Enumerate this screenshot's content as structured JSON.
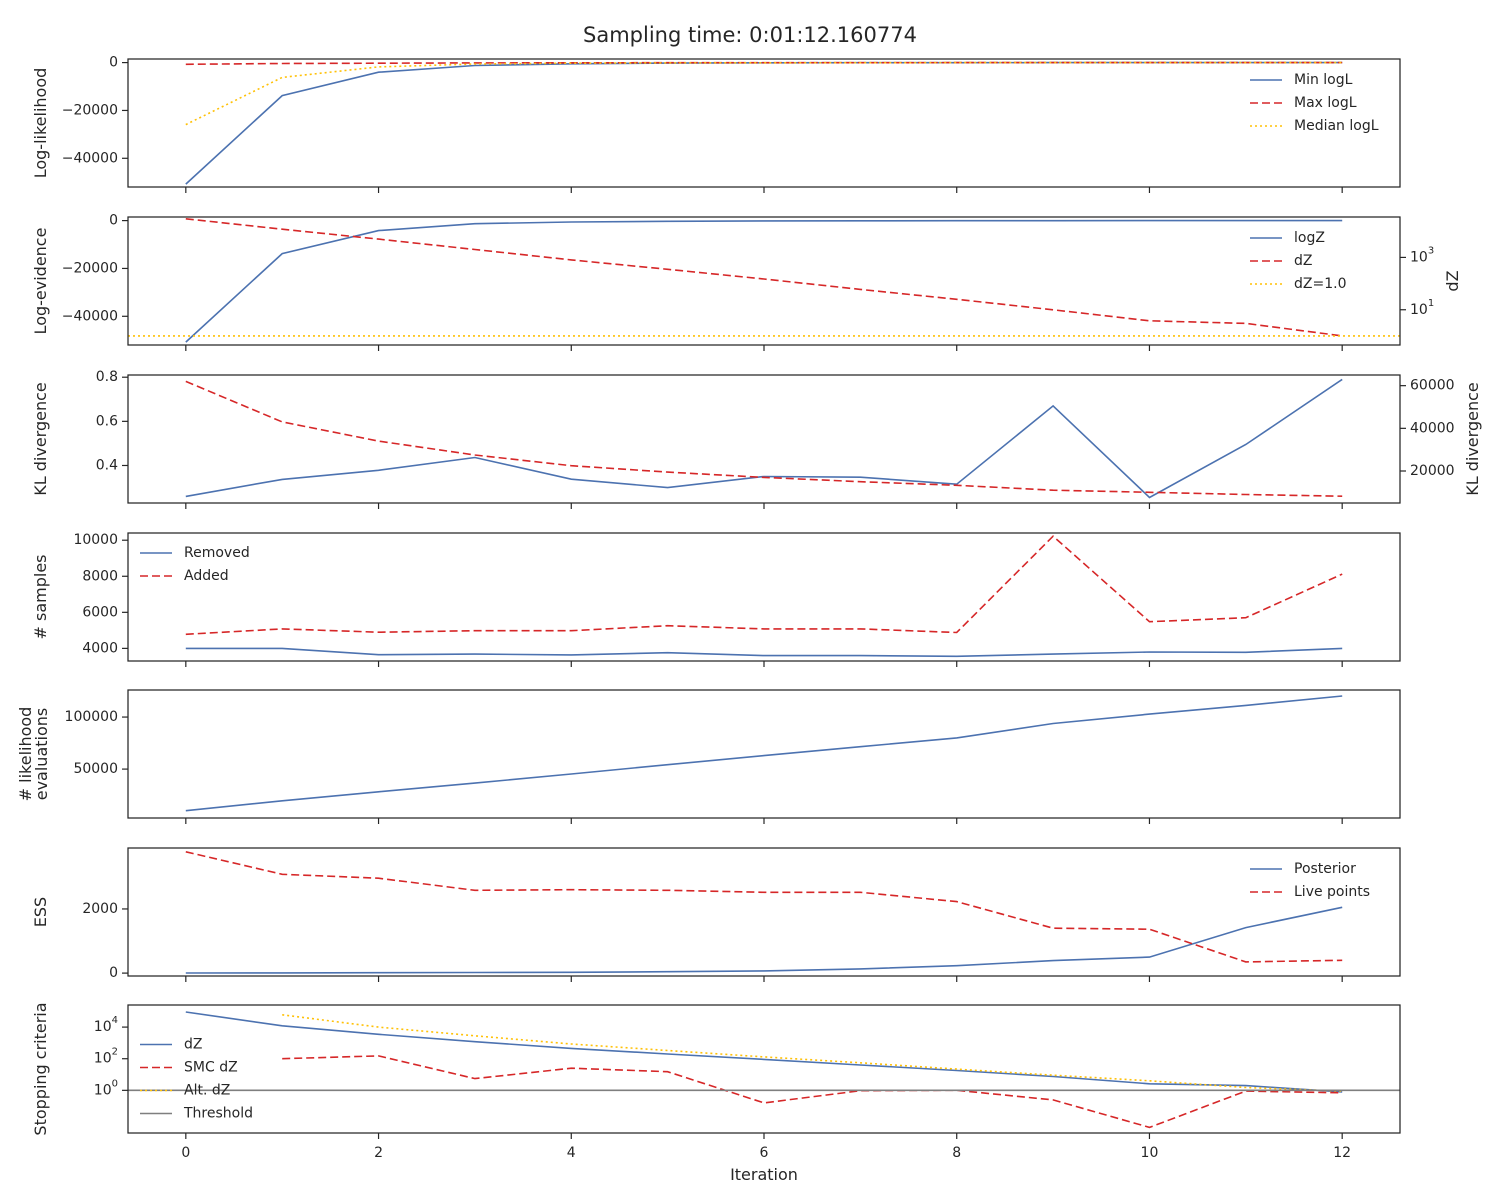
{
  "title": "Sampling time: 0:01:12.160774",
  "xlabel": "Iteration",
  "x_ticks": [
    0,
    2,
    4,
    6,
    8,
    10,
    12
  ],
  "colors": {
    "blue": "#4c72b0",
    "red": "#d62728",
    "gold": "#ffc107",
    "gray": "#7f7f7f",
    "axis": "#262626"
  },
  "chart_data": [
    {
      "type": "line",
      "panel": "log-likelihood",
      "ylabel": "Log-likelihood",
      "ylim": [
        -52000,
        1500
      ],
      "yticks": [
        {
          "v": 0,
          "label": "0"
        },
        {
          "v": -20000,
          "label": "−20000"
        },
        {
          "v": -40000,
          "label": "−40000"
        }
      ],
      "legend_position": "upper right",
      "x": [
        0,
        1,
        2,
        3,
        4,
        5,
        6,
        7,
        8,
        9,
        10,
        11,
        12
      ],
      "series": [
        {
          "name": "Min logL",
          "color": "#4c72b0",
          "style": "solid",
          "values": [
            -50800,
            -13800,
            -4000,
            -1200,
            -500,
            -200,
            -100,
            -50,
            -30,
            -20,
            -10,
            -8,
            -5
          ]
        },
        {
          "name": "Max logL",
          "color": "#d62728",
          "style": "dashed",
          "values": [
            -700,
            -400,
            -250,
            -150,
            -100,
            -60,
            -40,
            -30,
            -20,
            -15,
            -10,
            -8,
            -5
          ]
        },
        {
          "name": "Median logL",
          "color": "#ffc107",
          "style": "dotted",
          "values": [
            -25900,
            -6200,
            -1800,
            -600,
            -250,
            -120,
            -70,
            -40,
            -25,
            -18,
            -12,
            -9,
            -6
          ]
        }
      ]
    },
    {
      "type": "line",
      "panel": "log-evidence",
      "ylabel": "Log-evidence",
      "ylim": [
        -52000,
        1500
      ],
      "yticks": [
        {
          "v": 0,
          "label": "0"
        },
        {
          "v": -20000,
          "label": "−20000"
        },
        {
          "v": -40000,
          "label": "−40000"
        }
      ],
      "y2label": "dZ",
      "y2scale": "log",
      "y2lim": [
        0.45,
        35000
      ],
      "y2ticks": [
        {
          "v": 1000,
          "label": "10",
          "exp": "3"
        },
        {
          "v": 10,
          "label": "10",
          "exp": "1"
        }
      ],
      "legend_position": "upper right",
      "x": [
        0,
        1,
        2,
        3,
        4,
        5,
        6,
        7,
        8,
        9,
        10,
        11,
        12
      ],
      "series": [
        {
          "name": "logZ",
          "color": "#4c72b0",
          "style": "solid",
          "axis": "left",
          "values": [
            -50800,
            -13800,
            -4200,
            -1300,
            -600,
            -300,
            -150,
            -80,
            -50,
            -30,
            -20,
            -10,
            -5
          ]
        },
        {
          "name": "dZ",
          "color": "#d62728",
          "style": "dashed",
          "axis": "right",
          "values": [
            30000,
            12000,
            5000,
            2000,
            800,
            350,
            150,
            60,
            25,
            10,
            3.8,
            3,
            1.0
          ]
        },
        {
          "name": "dZ=1.0",
          "color": "#ffc107",
          "style": "dotted",
          "axis": "right",
          "hline": 1.0
        }
      ]
    },
    {
      "type": "line",
      "panel": "kl-divergence",
      "ylabel": "KL divergence",
      "ylim": [
        0.23,
        0.81
      ],
      "yticks": [
        {
          "v": 0.4,
          "label": "0.4"
        },
        {
          "v": 0.6,
          "label": "0.6"
        },
        {
          "v": 0.8,
          "label": "0.8"
        }
      ],
      "y2label": "KL divergence",
      "y2lim": [
        5000,
        65000
      ],
      "y2ticks": [
        {
          "v": 20000,
          "label": "20000"
        },
        {
          "v": 40000,
          "label": "40000"
        },
        {
          "v": 60000,
          "label": "60000"
        }
      ],
      "x": [
        0,
        1,
        2,
        3,
        4,
        5,
        6,
        7,
        8,
        9,
        10,
        11,
        12
      ],
      "series": [
        {
          "color": "#4c72b0",
          "style": "solid",
          "axis": "left",
          "values": [
            0.26,
            0.337,
            0.378,
            0.436,
            0.338,
            0.3,
            0.35,
            0.347,
            0.315,
            0.67,
            0.255,
            0.495,
            0.79
          ]
        },
        {
          "color": "#d62728",
          "style": "dashed",
          "axis": "right",
          "values": [
            62000,
            43000,
            34000,
            27500,
            22500,
            19500,
            17000,
            15000,
            13300,
            11000,
            10000,
            9000,
            8200
          ]
        }
      ]
    },
    {
      "type": "line",
      "panel": "samples",
      "ylabel": "# samples",
      "ylim": [
        3300,
        10400
      ],
      "yticks": [
        {
          "v": 4000,
          "label": "4000"
        },
        {
          "v": 6000,
          "label": "6000"
        },
        {
          "v": 8000,
          "label": "8000"
        },
        {
          "v": 10000,
          "label": "10000"
        }
      ],
      "legend_position": "upper left",
      "x": [
        0,
        1,
        2,
        3,
        4,
        5,
        6,
        7,
        8,
        9,
        10,
        11,
        12
      ],
      "series": [
        {
          "name": "Removed",
          "color": "#4c72b0",
          "style": "solid",
          "values": [
            4000,
            4000,
            3650,
            3680,
            3640,
            3760,
            3600,
            3600,
            3560,
            3680,
            3800,
            3780,
            4000
          ]
        },
        {
          "name": "Added",
          "color": "#d62728",
          "style": "dashed",
          "values": [
            4780,
            5080,
            4900,
            4980,
            4980,
            5260,
            5080,
            5080,
            4880,
            10220,
            5480,
            5700,
            8120
          ]
        }
      ]
    },
    {
      "type": "line",
      "panel": "likelihood-evaluations",
      "ylabel": "# likelihood",
      "ylabel2": "evaluations",
      "ylim": [
        3000,
        126000
      ],
      "yticks": [
        {
          "v": 50000,
          "label": "50000"
        },
        {
          "v": 100000,
          "label": "100000"
        }
      ],
      "x": [
        0,
        1,
        2,
        3,
        4,
        5,
        6,
        7,
        8,
        9,
        10,
        11,
        12
      ],
      "series": [
        {
          "color": "#4c72b0",
          "style": "solid",
          "values": [
            10000,
            19500,
            28200,
            36500,
            45300,
            54200,
            63000,
            71500,
            80000,
            93800,
            102800,
            111200,
            120200
          ]
        }
      ]
    },
    {
      "type": "line",
      "panel": "ess",
      "ylabel": "ESS",
      "ylim": [
        -90,
        3900
      ],
      "yticks": [
        {
          "v": 0,
          "label": "0"
        },
        {
          "v": 2000,
          "label": "2000"
        }
      ],
      "legend_position": "upper right",
      "x": [
        0,
        1,
        2,
        3,
        4,
        5,
        6,
        7,
        8,
        9,
        10,
        11,
        12
      ],
      "series": [
        {
          "name": "Posterior",
          "color": "#4c72b0",
          "style": "solid",
          "values": [
            5,
            8,
            12,
            18,
            25,
            45,
            70,
            130,
            230,
            390,
            500,
            1420,
            2050
          ]
        },
        {
          "name": "Live points",
          "color": "#d62728",
          "style": "dashed",
          "values": [
            3780,
            3080,
            2960,
            2580,
            2600,
            2580,
            2520,
            2520,
            2230,
            1400,
            1370,
            350,
            400
          ]
        }
      ]
    },
    {
      "type": "line",
      "panel": "stopping-criteria",
      "ylabel": "Stopping criteria",
      "yscale": "log",
      "ylim": [
        0.002,
        250000
      ],
      "yticks": [
        {
          "v": 1,
          "label": "10",
          "exp": "0"
        },
        {
          "v": 100,
          "label": "10",
          "exp": "2"
        },
        {
          "v": 10000,
          "label": "10",
          "exp": "4"
        }
      ],
      "legend_position": "center left",
      "x": [
        0,
        1,
        2,
        3,
        4,
        5,
        6,
        7,
        8,
        9,
        10,
        11,
        12
      ],
      "series": [
        {
          "name": "dZ",
          "color": "#4c72b0",
          "style": "solid",
          "x": [
            0,
            1,
            2,
            3,
            4,
            5,
            6,
            7,
            8,
            9,
            10,
            11,
            12
          ],
          "values": [
            90000,
            12000,
            3500,
            1200,
            450,
            200,
            90,
            40,
            18,
            7.5,
            2.6,
            2.0,
            0.8
          ]
        },
        {
          "name": "SMC dZ",
          "color": "#d62728",
          "style": "dashed",
          "x": [
            1,
            2,
            3,
            4,
            5,
            6,
            7,
            8,
            9,
            10,
            11,
            12
          ],
          "values": [
            100,
            150,
            5.5,
            25,
            15,
            0.16,
            0.95,
            1.0,
            0.25,
            0.0045,
            0.9,
            0.7
          ]
        },
        {
          "name": "Alt. dZ",
          "color": "#ffc107",
          "style": "dotted",
          "x": [
            1,
            2,
            3,
            4,
            5,
            6,
            7,
            8,
            9,
            10,
            11,
            12
          ],
          "values": [
            60000,
            10000,
            2800,
            850,
            330,
            130,
            55,
            22,
            9,
            4.0,
            1.5,
            0.9
          ]
        },
        {
          "name": "Threshold",
          "color": "#7f7f7f",
          "style": "solid",
          "hline": 1.0
        }
      ]
    }
  ]
}
